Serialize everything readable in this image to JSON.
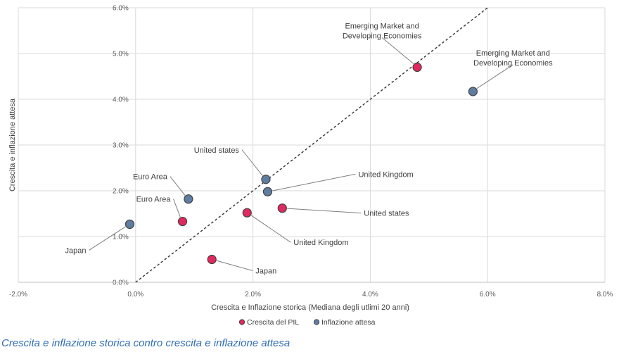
{
  "caption": "Crescita e inflazione storica contro crescita e inflazione attesa",
  "chart_data": {
    "type": "scatter",
    "title": "",
    "xlabel": "Crescita e Inflazione storica (Mediana degli utlimi 20 anni)",
    "ylabel": "Crescita e inflazione attesa",
    "xlim": [
      -2,
      8
    ],
    "ylim": [
      0,
      6
    ],
    "x_ticks": [
      "-2.0%",
      "0.0%",
      "2.0%",
      "4.0%",
      "6.0%",
      "8.0%"
    ],
    "y_ticks": [
      "0.0%",
      "1.0%",
      "2.0%",
      "3.0%",
      "4.0%",
      "5.0%",
      "6.0%"
    ],
    "grid": true,
    "reference_line": "y = x (dashed)",
    "legend_position": "bottom",
    "colors": {
      "Crescita del PIL": "#e0295f",
      "Inflazione attesa": "#5f7da1",
      "grid": "#d9d9d9",
      "caption": "#2f6db5"
    },
    "series": [
      {
        "name": "Crescita del PIL",
        "points": [
          {
            "label": "Japan",
            "x": 1.3,
            "y": 0.5
          },
          {
            "label": "Euro Area",
            "x": 0.8,
            "y": 1.33
          },
          {
            "label": "United Kingdom",
            "x": 1.9,
            "y": 1.52
          },
          {
            "label": "United states",
            "x": 2.5,
            "y": 1.62
          },
          {
            "label": "Emerging Market and\nDeveloping Economies",
            "x": 4.8,
            "y": 4.7
          }
        ]
      },
      {
        "name": "Inflazione attesa",
        "points": [
          {
            "label": "Japan",
            "x": -0.1,
            "y": 1.27
          },
          {
            "label": "Euro Area",
            "x": 0.9,
            "y": 1.82
          },
          {
            "label": "United Kingdom",
            "x": 2.25,
            "y": 1.98
          },
          {
            "label": "United states",
            "x": 2.22,
            "y": 2.25
          },
          {
            "label": "Emerging Market and\nDeveloping Economies",
            "x": 5.75,
            "y": 4.17
          }
        ]
      }
    ]
  }
}
